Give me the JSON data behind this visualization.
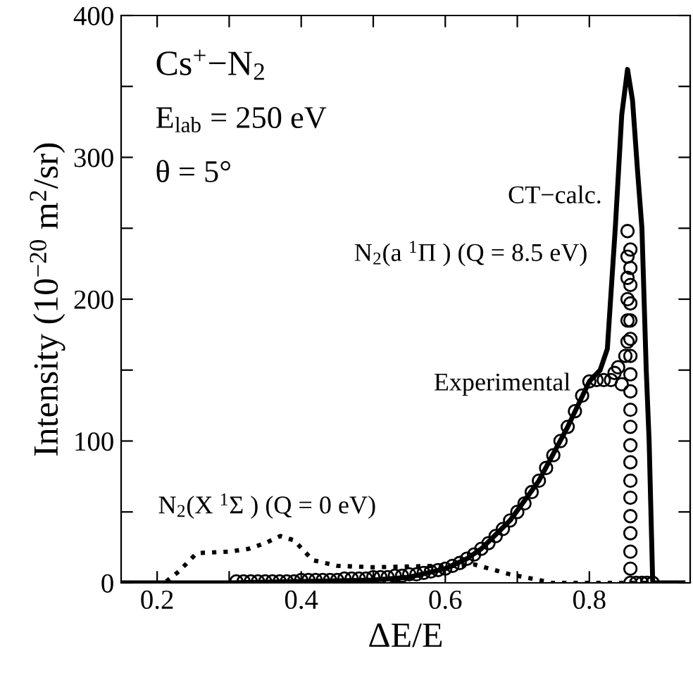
{
  "chart_data": {
    "type": "line",
    "xlabel": "ΔE/E",
    "ylabel": "Intensity (10$^{−20}$ m$^{2}$/sr)",
    "xlim": [
      0.15,
      0.94
    ],
    "ylim": [
      0,
      400
    ],
    "xticks": [
      0.2,
      {
        "value": 0.3,
        "label": null
      },
      0.4,
      {
        "value": 0.5,
        "label": null
      },
      0.6,
      {
        "value": 0.7,
        "label": null
      },
      0.8
    ],
    "yticks": [
      0,
      {
        "value": 50,
        "label": null
      },
      100,
      {
        "value": 150,
        "label": null
      },
      200,
      {
        "value": 250,
        "label": null
      },
      300,
      {
        "value": 350,
        "label": null
      },
      400
    ],
    "grid": false,
    "legend": false,
    "series": [
      {
        "type": "scatter",
        "marker": "circle",
        "color": "#000000",
        "x": [
          0.31,
          0.32,
          0.33,
          0.34,
          0.35,
          0.36,
          0.37,
          0.38,
          0.39,
          0.4,
          0.41,
          0.42,
          0.43,
          0.44,
          0.45,
          0.46,
          0.47,
          0.48,
          0.49,
          0.5,
          0.51,
          0.52,
          0.53,
          0.54,
          0.55,
          0.56,
          0.57,
          0.58,
          0.59,
          0.6,
          0.61,
          0.62,
          0.63,
          0.64,
          0.65,
          0.66,
          0.67,
          0.68,
          0.69,
          0.7,
          0.71,
          0.72,
          0.73,
          0.74,
          0.75,
          0.76,
          0.77,
          0.78,
          0.79,
          0.8,
          0.81,
          0.82,
          0.83,
          0.835,
          0.84,
          0.845,
          0.85,
          0.853,
          0.853,
          0.853,
          0.853,
          0.853,
          0.853,
          0.857,
          0.857,
          0.857,
          0.857,
          0.857,
          0.857,
          0.857,
          0.857,
          0.857,
          0.857,
          0.857,
          0.857,
          0.857,
          0.857,
          0.857,
          0.857,
          0.857,
          0.857,
          0.857,
          0.857,
          0.865,
          0.873,
          0.88,
          0.888
        ],
        "values": [
          1,
          1,
          1,
          1,
          1,
          1,
          1,
          1,
          1,
          2,
          2,
          2,
          2,
          2,
          2,
          3,
          3,
          3,
          3,
          4,
          4,
          4,
          5,
          5,
          6,
          6,
          7,
          8,
          9,
          10,
          12,
          14,
          17,
          20,
          24,
          28,
          33,
          38,
          44,
          50,
          56,
          64,
          72,
          81,
          90,
          100,
          110,
          121,
          132,
          142,
          143,
          143,
          143,
          148,
          152,
          140,
          160,
          170,
          185,
          200,
          215,
          230,
          248,
          235,
          222,
          210,
          197,
          185,
          172,
          160,
          147,
          135,
          122,
          110,
          97,
          85,
          72,
          60,
          47,
          35,
          22,
          10,
          0,
          0,
          0,
          0,
          0
        ]
      },
      {
        "line_style": "solid",
        "color": "#000000",
        "x": [
          0.15,
          0.3,
          0.4,
          0.5,
          0.55,
          0.6,
          0.63,
          0.65,
          0.69,
          0.73,
          0.77,
          0.8,
          0.815,
          0.825,
          0.836,
          0.845,
          0.853,
          0.86,
          0.867,
          0.873,
          0.879,
          0.883,
          0.886,
          0.888,
          0.93
        ],
        "values": [
          0,
          0,
          1,
          2,
          4,
          10,
          17,
          24,
          44,
          72,
          110,
          142,
          150,
          165,
          250,
          330,
          362,
          340,
          290,
          250,
          150,
          100,
          40,
          0,
          0
        ]
      },
      {
        "type": "line",
        "line_style": "dotted",
        "color": "#000000",
        "x": [
          0.15,
          0.21,
          0.23,
          0.255,
          0.3,
          0.327,
          0.35,
          0.371,
          0.39,
          0.416,
          0.45,
          0.5,
          0.59,
          0.62,
          0.64,
          0.69,
          0.72,
          0.748,
          0.85,
          0.93
        ],
        "values": [
          0,
          0,
          8,
          21,
          22,
          24,
          28,
          33,
          30,
          16,
          12,
          11,
          12,
          12,
          13,
          6,
          3,
          0,
          0,
          0
        ]
      }
    ],
    "annotations": [
      "Cs$^{+}$−N$_{2}$",
      "E$_{lab}$ = 250 eV",
      "θ = 5°",
      "CT−calc.",
      "N$_{2}$(a $^{1}$Π ) (Q = 8.5 eV)",
      "Experimental",
      "N$_{2}$(X $^{1}$Σ ) (Q = 0 eV)"
    ]
  }
}
